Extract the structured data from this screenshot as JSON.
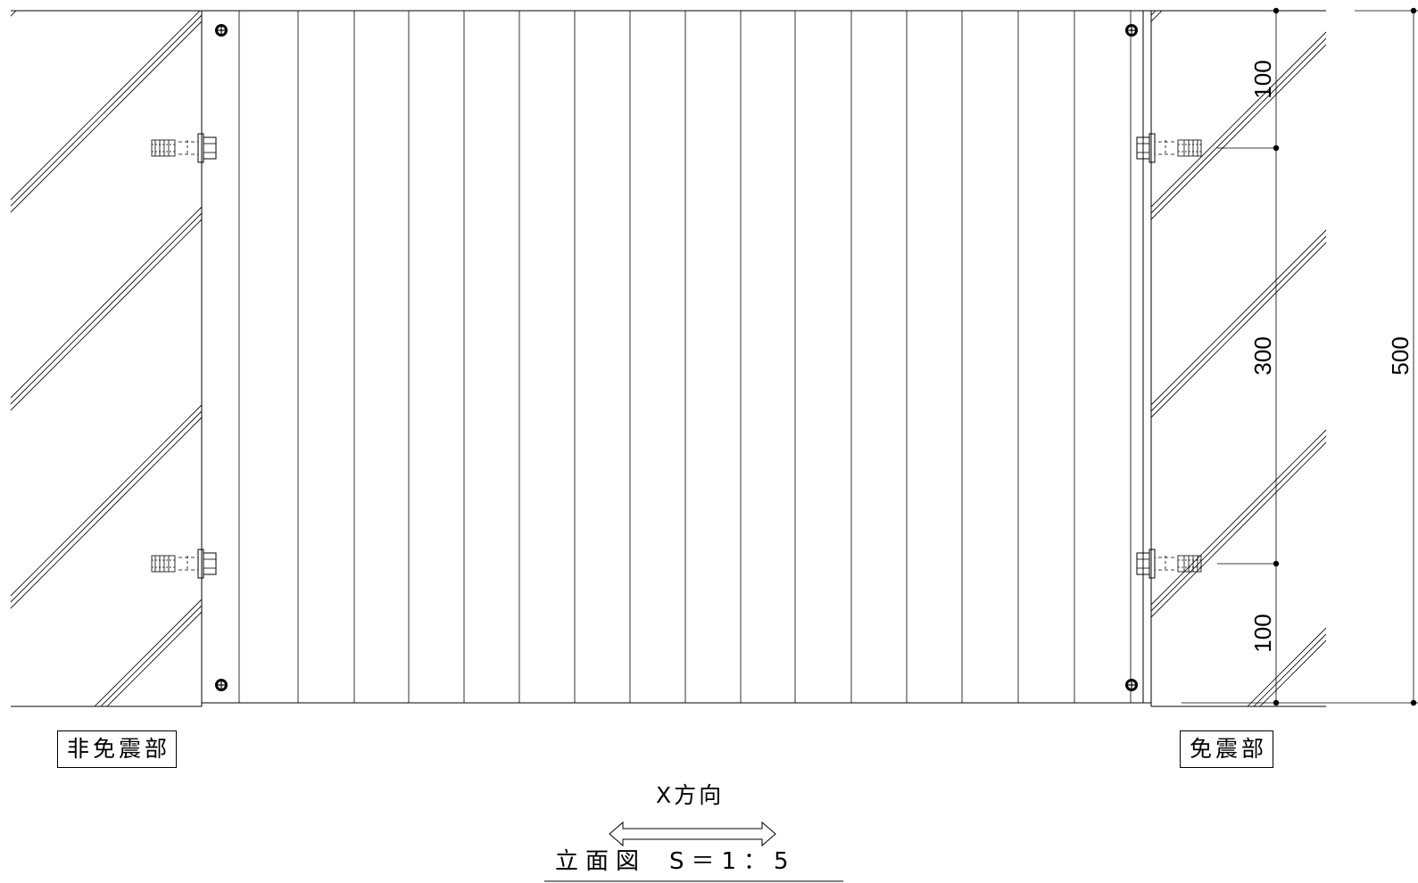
{
  "labels": {
    "non_isolated": "非免震部",
    "isolated": "免震部"
  },
  "direction": {
    "label": "X方向"
  },
  "title": {
    "view": "立面図",
    "scale": "S＝1：5"
  },
  "dimensions": {
    "top": "100",
    "middle": "300",
    "bottom": "100",
    "total": "500"
  }
}
